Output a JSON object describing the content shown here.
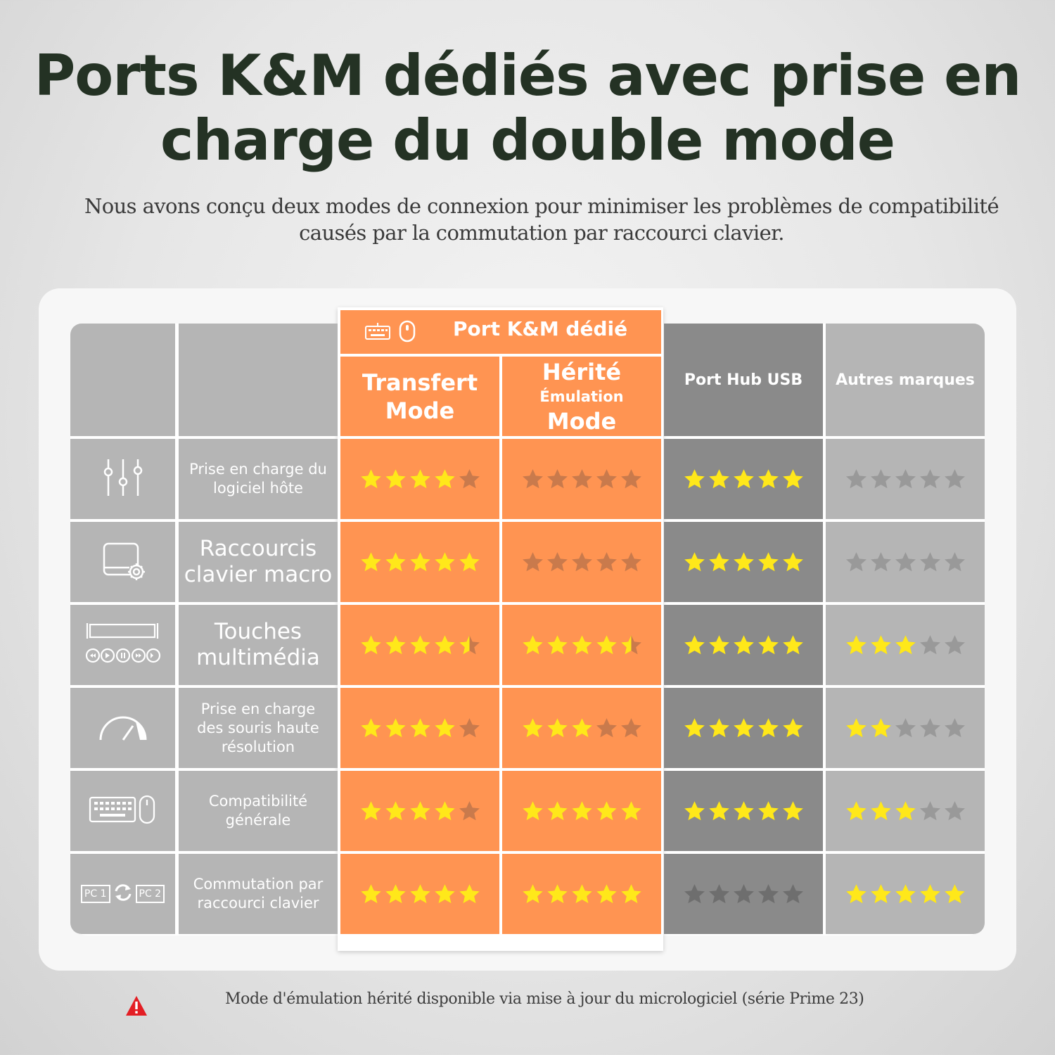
{
  "header": {
    "title_line1": "Ports K&M dédiés avec prise en",
    "title_line2": "charge du double mode",
    "subtitle_line1": "Nous avons conçu deux modes de connexion pour minimiser les problèmes de compatibilité",
    "subtitle_line2": "causés par la commutation par raccourci clavier."
  },
  "table": {
    "group_header": "Port K&M dédié",
    "columns": {
      "transfer_line1": "Transfert",
      "transfer_line2": "Mode",
      "legacy_line1": "Hérité",
      "legacy_line2": "Émulation",
      "legacy_line3": "Mode",
      "usb_hub": "Port Hub USB",
      "other_brands": "Autres marques"
    },
    "rows": [
      {
        "icon": "sliders-icon",
        "label_lines": [
          "Prise en charge du",
          "logiciel hôte"
        ],
        "size": "small",
        "ratings": [
          4,
          0,
          5,
          0
        ]
      },
      {
        "icon": "macro-window-gear-icon",
        "label_lines": [
          "Raccourcis",
          "clavier macro"
        ],
        "size": "large",
        "ratings": [
          5,
          0,
          5,
          0
        ]
      },
      {
        "icon": "media-keys-icon",
        "label_lines": [
          "Touches",
          "multimédia"
        ],
        "size": "large",
        "ratings": [
          4.5,
          4.5,
          5,
          3
        ]
      },
      {
        "icon": "speedometer-icon",
        "label_lines": [
          "Prise en charge",
          "des souris haute",
          "résolution"
        ],
        "size": "small",
        "ratings": [
          4,
          3,
          5,
          2
        ]
      },
      {
        "icon": "keyboard-mouse-icon",
        "label_lines": [
          "Compatibilité",
          "générale"
        ],
        "size": "small",
        "ratings": [
          4,
          5,
          5,
          3
        ]
      },
      {
        "icon": "pc-switch-icon",
        "label_lines": [
          "Commutation par",
          "raccourci clavier"
        ],
        "size": "small",
        "ratings": [
          5,
          5,
          0,
          5
        ]
      }
    ],
    "pc_labels": [
      "PC 1",
      "PC 2"
    ],
    "colors": {
      "star_on": "#ffe81a",
      "star_off_orange": "#c97a4c",
      "star_off_dark": "#6e6e6e",
      "star_off_gray": "#999999",
      "orange": "#ff9452"
    }
  },
  "footer": {
    "note": "Mode d'émulation hérité disponible via mise à jour du micrologiciel (série Prime 23)"
  }
}
